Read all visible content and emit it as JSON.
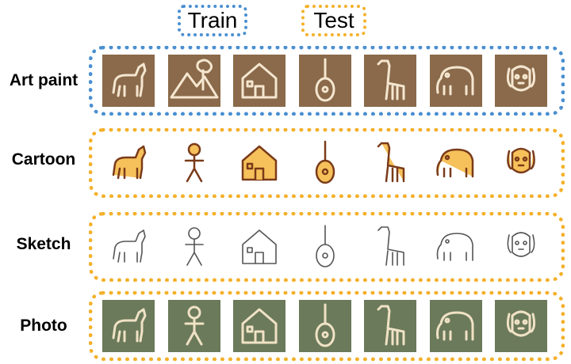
{
  "legend": {
    "train": {
      "label": "Train",
      "color": "#4a8fd1"
    },
    "test": {
      "label": "Test",
      "color": "#f4b02a"
    }
  },
  "rows": [
    {
      "label": "Art paint",
      "split": "train",
      "color": "#4a8fd1",
      "images": [
        "horse-icon",
        "mountain-tree-icon",
        "house-icon",
        "guitar-icon",
        "giraffe-icon",
        "elephant-icon",
        "dog-icon"
      ]
    },
    {
      "label": "Cartoon",
      "split": "test",
      "color": "#f4b02a",
      "images": [
        "horse-icon",
        "person-icon",
        "house-icon",
        "guitar-icon",
        "giraffe-icon",
        "elephant-icon",
        "dog-icon"
      ]
    },
    {
      "label": "Sketch",
      "split": "test",
      "color": "#f4b02a",
      "images": [
        "horse-icon",
        "person-icon",
        "house-icon",
        "guitar-icon",
        "giraffe-icon",
        "elephant-icon",
        "dog-icon"
      ]
    },
    {
      "label": "Photo",
      "split": "test",
      "color": "#f4b02a",
      "images": [
        "horse-icon",
        "person-icon",
        "house-icon",
        "guitar-icon",
        "giraffe-icon",
        "elephant-icon",
        "dog-icon"
      ]
    }
  ]
}
